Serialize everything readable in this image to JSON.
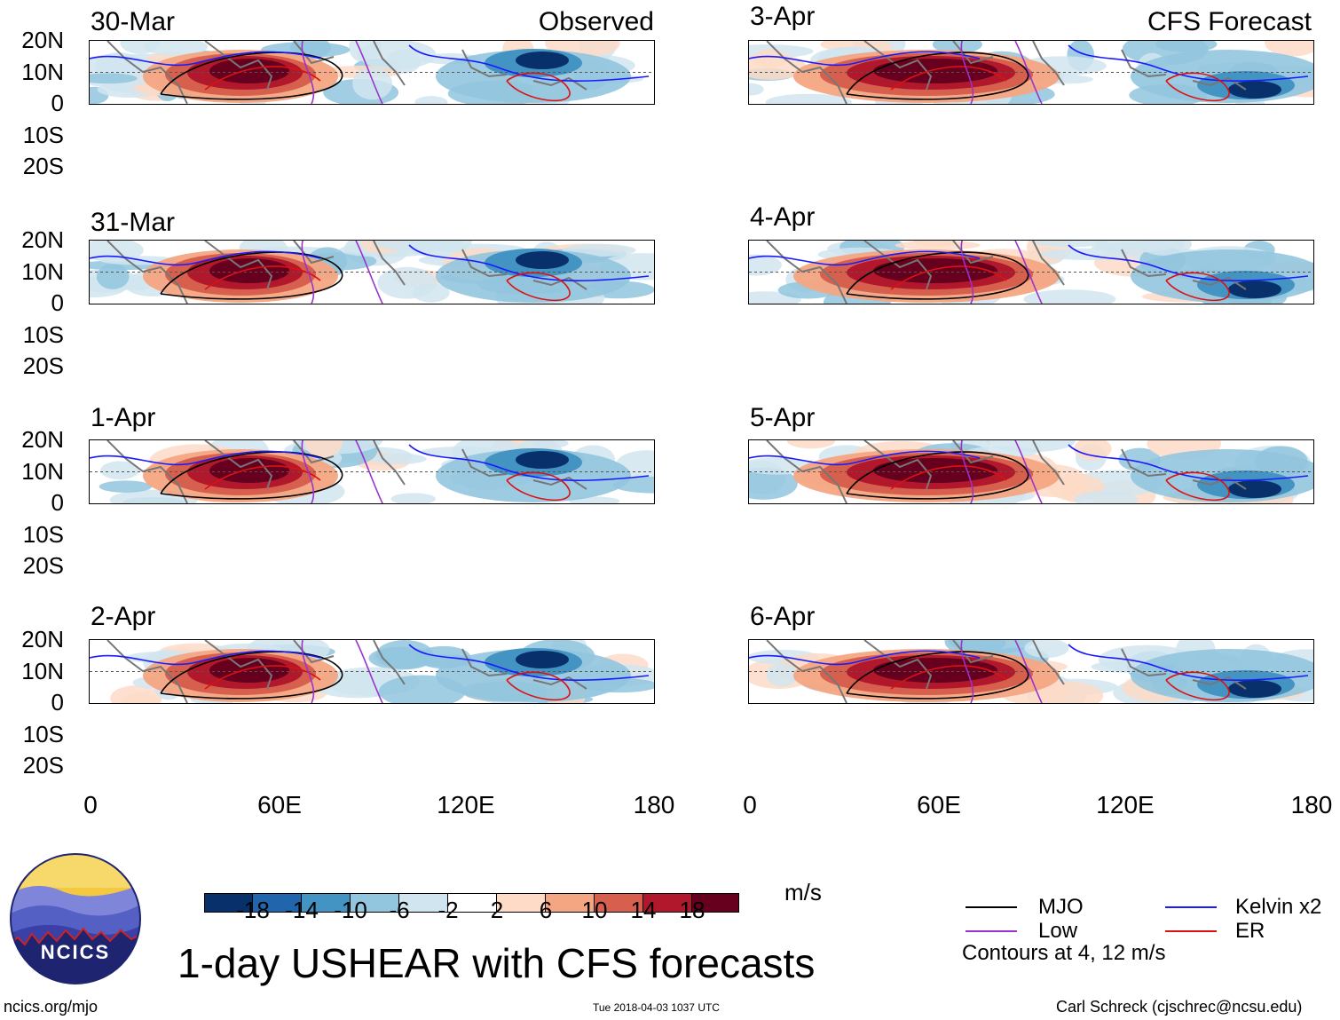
{
  "header": {
    "observed_label": "Observed",
    "forecast_label": "CFS Forecast"
  },
  "panels": {
    "left": [
      {
        "date": "30-Mar"
      },
      {
        "date": "31-Mar"
      },
      {
        "date": "1-Apr"
      },
      {
        "date": "2-Apr"
      }
    ],
    "right": [
      {
        "date": "3-Apr"
      },
      {
        "date": "4-Apr"
      },
      {
        "date": "5-Apr"
      },
      {
        "date": "6-Apr"
      }
    ]
  },
  "axes": {
    "lat_labels": [
      "20N",
      "10N",
      "0",
      "10S",
      "20S"
    ],
    "lon_labels": [
      "0",
      "60E",
      "120E",
      "180"
    ]
  },
  "colorbar": {
    "unit": "m/s",
    "tick_labels": [
      "-18",
      "-14",
      "-10",
      "-6",
      "-2",
      "2",
      "6",
      "10",
      "14",
      "18"
    ],
    "colors": [
      "#08306b",
      "#2166ac",
      "#4393c3",
      "#92c5de",
      "#d1e5f0",
      "#ffffff",
      "#fddbc7",
      "#f4a582",
      "#d6604d",
      "#b2182b",
      "#67001f"
    ]
  },
  "legend": {
    "mjo": "MJO",
    "kelvin": "Kelvin x2",
    "low": "Low",
    "er": "ER",
    "contours_note": "Contours at 4, 12 m/s",
    "colors": {
      "mjo": "#000000",
      "kelvin": "#1a1aff",
      "low": "#9933cc",
      "er": "#dd1111"
    }
  },
  "title": "1-day USHEAR with CFS forecasts",
  "logo": {
    "text": "NCICS"
  },
  "footer": {
    "url": "ncics.org/mjo",
    "timestamp": "Tue 2018-04-03 1037 UTC",
    "author": "Carl Schreck (cjschrec@ncsu.edu)"
  }
}
